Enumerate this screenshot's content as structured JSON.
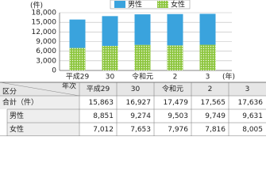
{
  "chart_data": {
    "type": "stacked-bar",
    "y_unit": "(件)",
    "x_unit": "(年)",
    "categories": [
      "平成29",
      "30",
      "令和元",
      "2",
      "3"
    ],
    "series": [
      {
        "name": "女性",
        "color": "#8dc63f",
        "values": [
          7012,
          7653,
          7976,
          7816,
          8005
        ]
      },
      {
        "name": "男性",
        "color": "#3aa3dd",
        "values": [
          8851,
          9274,
          9503,
          9749,
          9631
        ]
      }
    ],
    "ylim": [
      0,
      18000
    ],
    "yticks": [
      0,
      {
        "value": 3000,
        "label": "3,000"
      },
      {
        "value": 6000,
        "label": "6,000"
      },
      {
        "value": 9000,
        "label": "9,000"
      },
      {
        "value": 12000,
        "label": "12,000"
      },
      {
        "value": 15000,
        "label": "15,000"
      },
      {
        "value": 18000,
        "label": "18,000"
      }
    ]
  },
  "table": {
    "corner_top": "年次",
    "corner_bottom": "区分",
    "columns": [
      "平成29",
      "30",
      "令和元",
      "2",
      "3"
    ],
    "rows": [
      {
        "label": "合計（件）",
        "cells": [
          "15,863",
          "16,927",
          "17,479",
          "17,565",
          "17,636"
        ]
      },
      {
        "label": "男性",
        "cells": [
          "8,851",
          "9,274",
          "9,503",
          "9,749",
          "9,631"
        ]
      },
      {
        "label": "女性",
        "cells": [
          "7,012",
          "7,653",
          "7,976",
          "7,816",
          "8,005"
        ]
      }
    ]
  }
}
